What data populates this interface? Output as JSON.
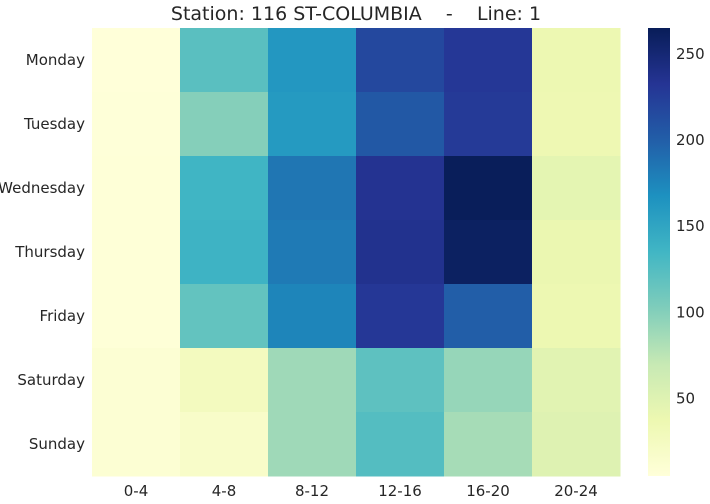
{
  "chart_data": {
    "type": "heatmap",
    "title": "Station: 116 ST-COLUMBIA    -    Line: 1",
    "x_categories": [
      "0-4",
      "4-8",
      "8-12",
      "12-16",
      "16-20",
      "20-24"
    ],
    "y_categories": [
      "Monday",
      "Tuesday",
      "Wednesday",
      "Thursday",
      "Friday",
      "Saturday",
      "Sunday"
    ],
    "values": [
      [
        5,
        122,
        162,
        217,
        230,
        37
      ],
      [
        6,
        100,
        160,
        205,
        228,
        36
      ],
      [
        7,
        136,
        185,
        234,
        264,
        45
      ],
      [
        7,
        138,
        182,
        236,
        260,
        39
      ],
      [
        7,
        117,
        175,
        230,
        200,
        37
      ],
      [
        10,
        26,
        88,
        120,
        92,
        48
      ],
      [
        10,
        18,
        88,
        125,
        85,
        50
      ]
    ],
    "colorbar": {
      "min": 5,
      "max": 265,
      "ticks": [
        50,
        100,
        150,
        200,
        250
      ],
      "tick_labels": [
        "50",
        "100",
        "150",
        "200",
        "250"
      ]
    },
    "colormap": "YlGnBu",
    "grid": false
  }
}
